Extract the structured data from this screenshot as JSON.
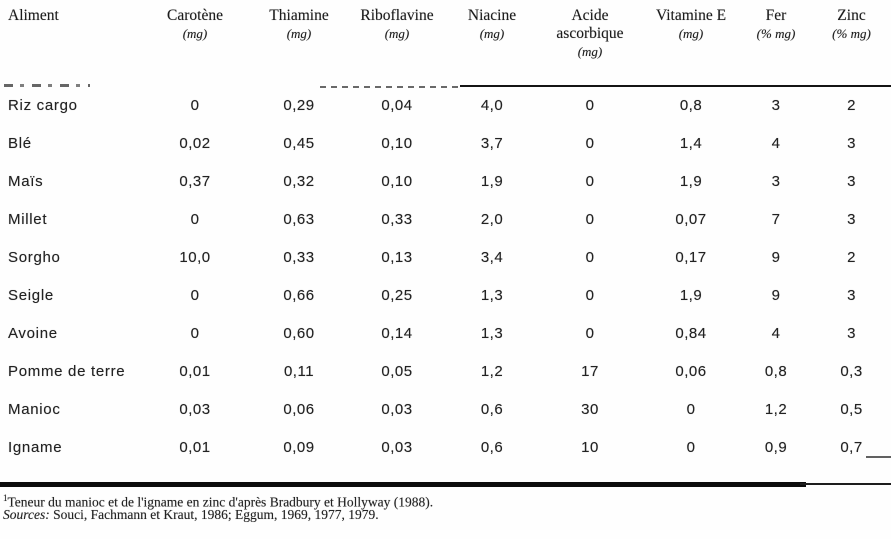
{
  "table": {
    "columns": [
      {
        "label": "Aliment",
        "unit": ""
      },
      {
        "label": "Carotène",
        "unit": "(mg)"
      },
      {
        "label": "Thiamine",
        "unit": "(mg)"
      },
      {
        "label": "Riboflavine",
        "unit": "(mg)"
      },
      {
        "label": "Niacine",
        "unit": "(mg)"
      },
      {
        "label": "Acide ascorbique",
        "unit": "(mg)"
      },
      {
        "label": "Vitamine E",
        "unit": "(mg)"
      },
      {
        "label": "Fer",
        "unit": "(% mg)"
      },
      {
        "label": "Zinc",
        "unit": "(% mg)"
      }
    ],
    "rows": [
      {
        "aliment": "Riz cargo",
        "values": [
          "0",
          "0,29",
          "0,04",
          "4,0",
          "0",
          "0,8",
          "3",
          "2"
        ]
      },
      {
        "aliment": "Blé",
        "values": [
          "0,02",
          "0,45",
          "0,10",
          "3,7",
          "0",
          "1,4",
          "4",
          "3"
        ]
      },
      {
        "aliment": "Maïs",
        "values": [
          "0,37",
          "0,32",
          "0,10",
          "1,9",
          "0",
          "1,9",
          "3",
          "3"
        ]
      },
      {
        "aliment": "Millet",
        "values": [
          "0",
          "0,63",
          "0,33",
          "2,0",
          "0",
          "0,07",
          "7",
          "3"
        ]
      },
      {
        "aliment": "Sorgho",
        "values": [
          "10,0",
          "0,33",
          "0,13",
          "3,4",
          "0",
          "0,17",
          "9",
          "2"
        ]
      },
      {
        "aliment": "Seigle",
        "values": [
          "0",
          "0,66",
          "0,25",
          "1,3",
          "0",
          "1,9",
          "9",
          "3"
        ]
      },
      {
        "aliment": "Avoine",
        "values": [
          "0",
          "0,60",
          "0,14",
          "1,3",
          "0",
          "0,84",
          "4",
          "3"
        ]
      },
      {
        "aliment": "Pomme de terre",
        "values": [
          "0,01",
          "0,11",
          "0,05",
          "1,2",
          "17",
          "0,06",
          "0,8",
          "0,3"
        ]
      },
      {
        "aliment": "Manioc",
        "values": [
          "0,03",
          "0,06",
          "0,03",
          "0,6",
          "30",
          "0",
          "1,2",
          "0,5"
        ]
      },
      {
        "aliment": "Igname",
        "values": [
          "0,01",
          "0,09",
          "0,03",
          "0,6",
          "10",
          "0",
          "0,9",
          "0,7"
        ]
      }
    ]
  },
  "footnotes": {
    "note1_superscript": "1",
    "note1_text": "Teneur du manioc et de l'igname en zinc d'après Bradbury et Hollyway (1988).",
    "sources_label": "Sources:",
    "sources_text": " Souci, Fachmann et Kraut, 1986; Eggum, 1969, 1977, 1979."
  }
}
